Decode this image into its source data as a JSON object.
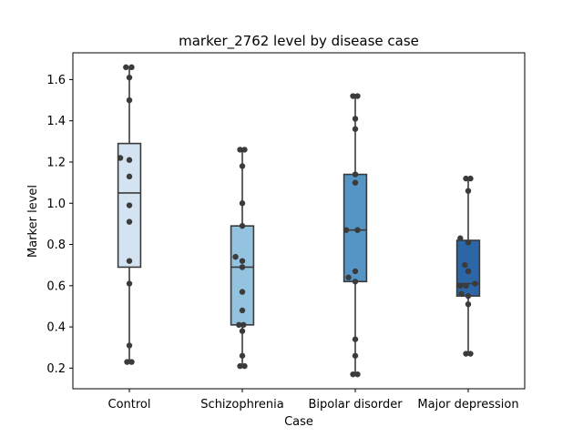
{
  "chart_data": {
    "type": "box",
    "title": "marker_2762 level by disease case",
    "xlabel": "Case",
    "ylabel": "Marker level",
    "ylim": [
      0.1,
      1.73
    ],
    "yticks": [
      0.2,
      0.4,
      0.6,
      0.8,
      1.0,
      1.2,
      1.4,
      1.6
    ],
    "ytick_labels": [
      "0.2",
      "0.4",
      "0.6",
      "0.8",
      "1.0",
      "1.2",
      "1.4",
      "1.6"
    ],
    "grid": false,
    "categories": [
      "Control",
      "Schizophrenia",
      "Bipolar disorder",
      "Major depression"
    ],
    "colors": [
      "#d4e3f1",
      "#94c3df",
      "#5595c6",
      "#2b66a6"
    ],
    "point_color": "#3b3b3b",
    "boxes": [
      {
        "category": "Control",
        "whisker_low": 0.23,
        "q1": 0.69,
        "median": 1.05,
        "q3": 1.29,
        "whisker_high": 1.66
      },
      {
        "category": "Schizophrenia",
        "whisker_low": 0.21,
        "q1": 0.41,
        "median": 0.69,
        "q3": 0.89,
        "whisker_high": 1.26
      },
      {
        "category": "Bipolar disorder",
        "whisker_low": 0.17,
        "q1": 0.62,
        "median": 0.87,
        "q3": 1.14,
        "whisker_high": 1.52
      },
      {
        "category": "Major depression",
        "whisker_low": 0.27,
        "q1": 0.55,
        "median": 0.61,
        "q3": 0.82,
        "whisker_high": 1.12
      }
    ],
    "points": [
      {
        "category": "Control",
        "values": [
          1.66,
          1.66,
          1.61,
          1.5,
          1.22,
          1.21,
          1.13,
          0.99,
          0.91,
          0.72,
          0.61,
          0.31,
          0.23,
          0.23
        ],
        "offsets": [
          -0.03,
          0.02,
          0.0,
          0.0,
          -0.08,
          0.0,
          0.0,
          0.0,
          0.0,
          0.0,
          0.0,
          0.0,
          -0.02,
          0.02
        ]
      },
      {
        "category": "Schizophrenia",
        "values": [
          1.26,
          1.26,
          1.18,
          1.0,
          0.89,
          0.74,
          0.72,
          0.69,
          0.57,
          0.48,
          0.41,
          0.41,
          0.38,
          0.26,
          0.21,
          0.21
        ],
        "offsets": [
          -0.02,
          0.02,
          0.0,
          0.0,
          0.0,
          -0.06,
          0.0,
          0.0,
          0.0,
          0.0,
          -0.03,
          0.01,
          0.0,
          0.0,
          -0.02,
          0.02
        ]
      },
      {
        "category": "Bipolar disorder",
        "values": [
          1.52,
          1.52,
          1.41,
          1.36,
          1.14,
          1.1,
          0.87,
          0.87,
          0.67,
          0.64,
          0.62,
          0.34,
          0.26,
          0.17,
          0.17
        ],
        "offsets": [
          -0.02,
          0.02,
          0.0,
          0.0,
          0.0,
          0.0,
          -0.08,
          0.02,
          0.0,
          -0.06,
          0.0,
          0.0,
          0.0,
          -0.02,
          0.02
        ]
      },
      {
        "category": "Major depression",
        "values": [
          1.12,
          1.12,
          1.06,
          0.83,
          0.81,
          0.7,
          0.67,
          0.61,
          0.6,
          0.6,
          0.56,
          0.55,
          0.51,
          0.27,
          0.27
        ],
        "offsets": [
          -0.02,
          0.02,
          0.0,
          -0.07,
          0.0,
          -0.03,
          0.0,
          0.06,
          -0.07,
          -0.02,
          -0.06,
          0.0,
          0.0,
          -0.02,
          0.02
        ]
      }
    ]
  }
}
